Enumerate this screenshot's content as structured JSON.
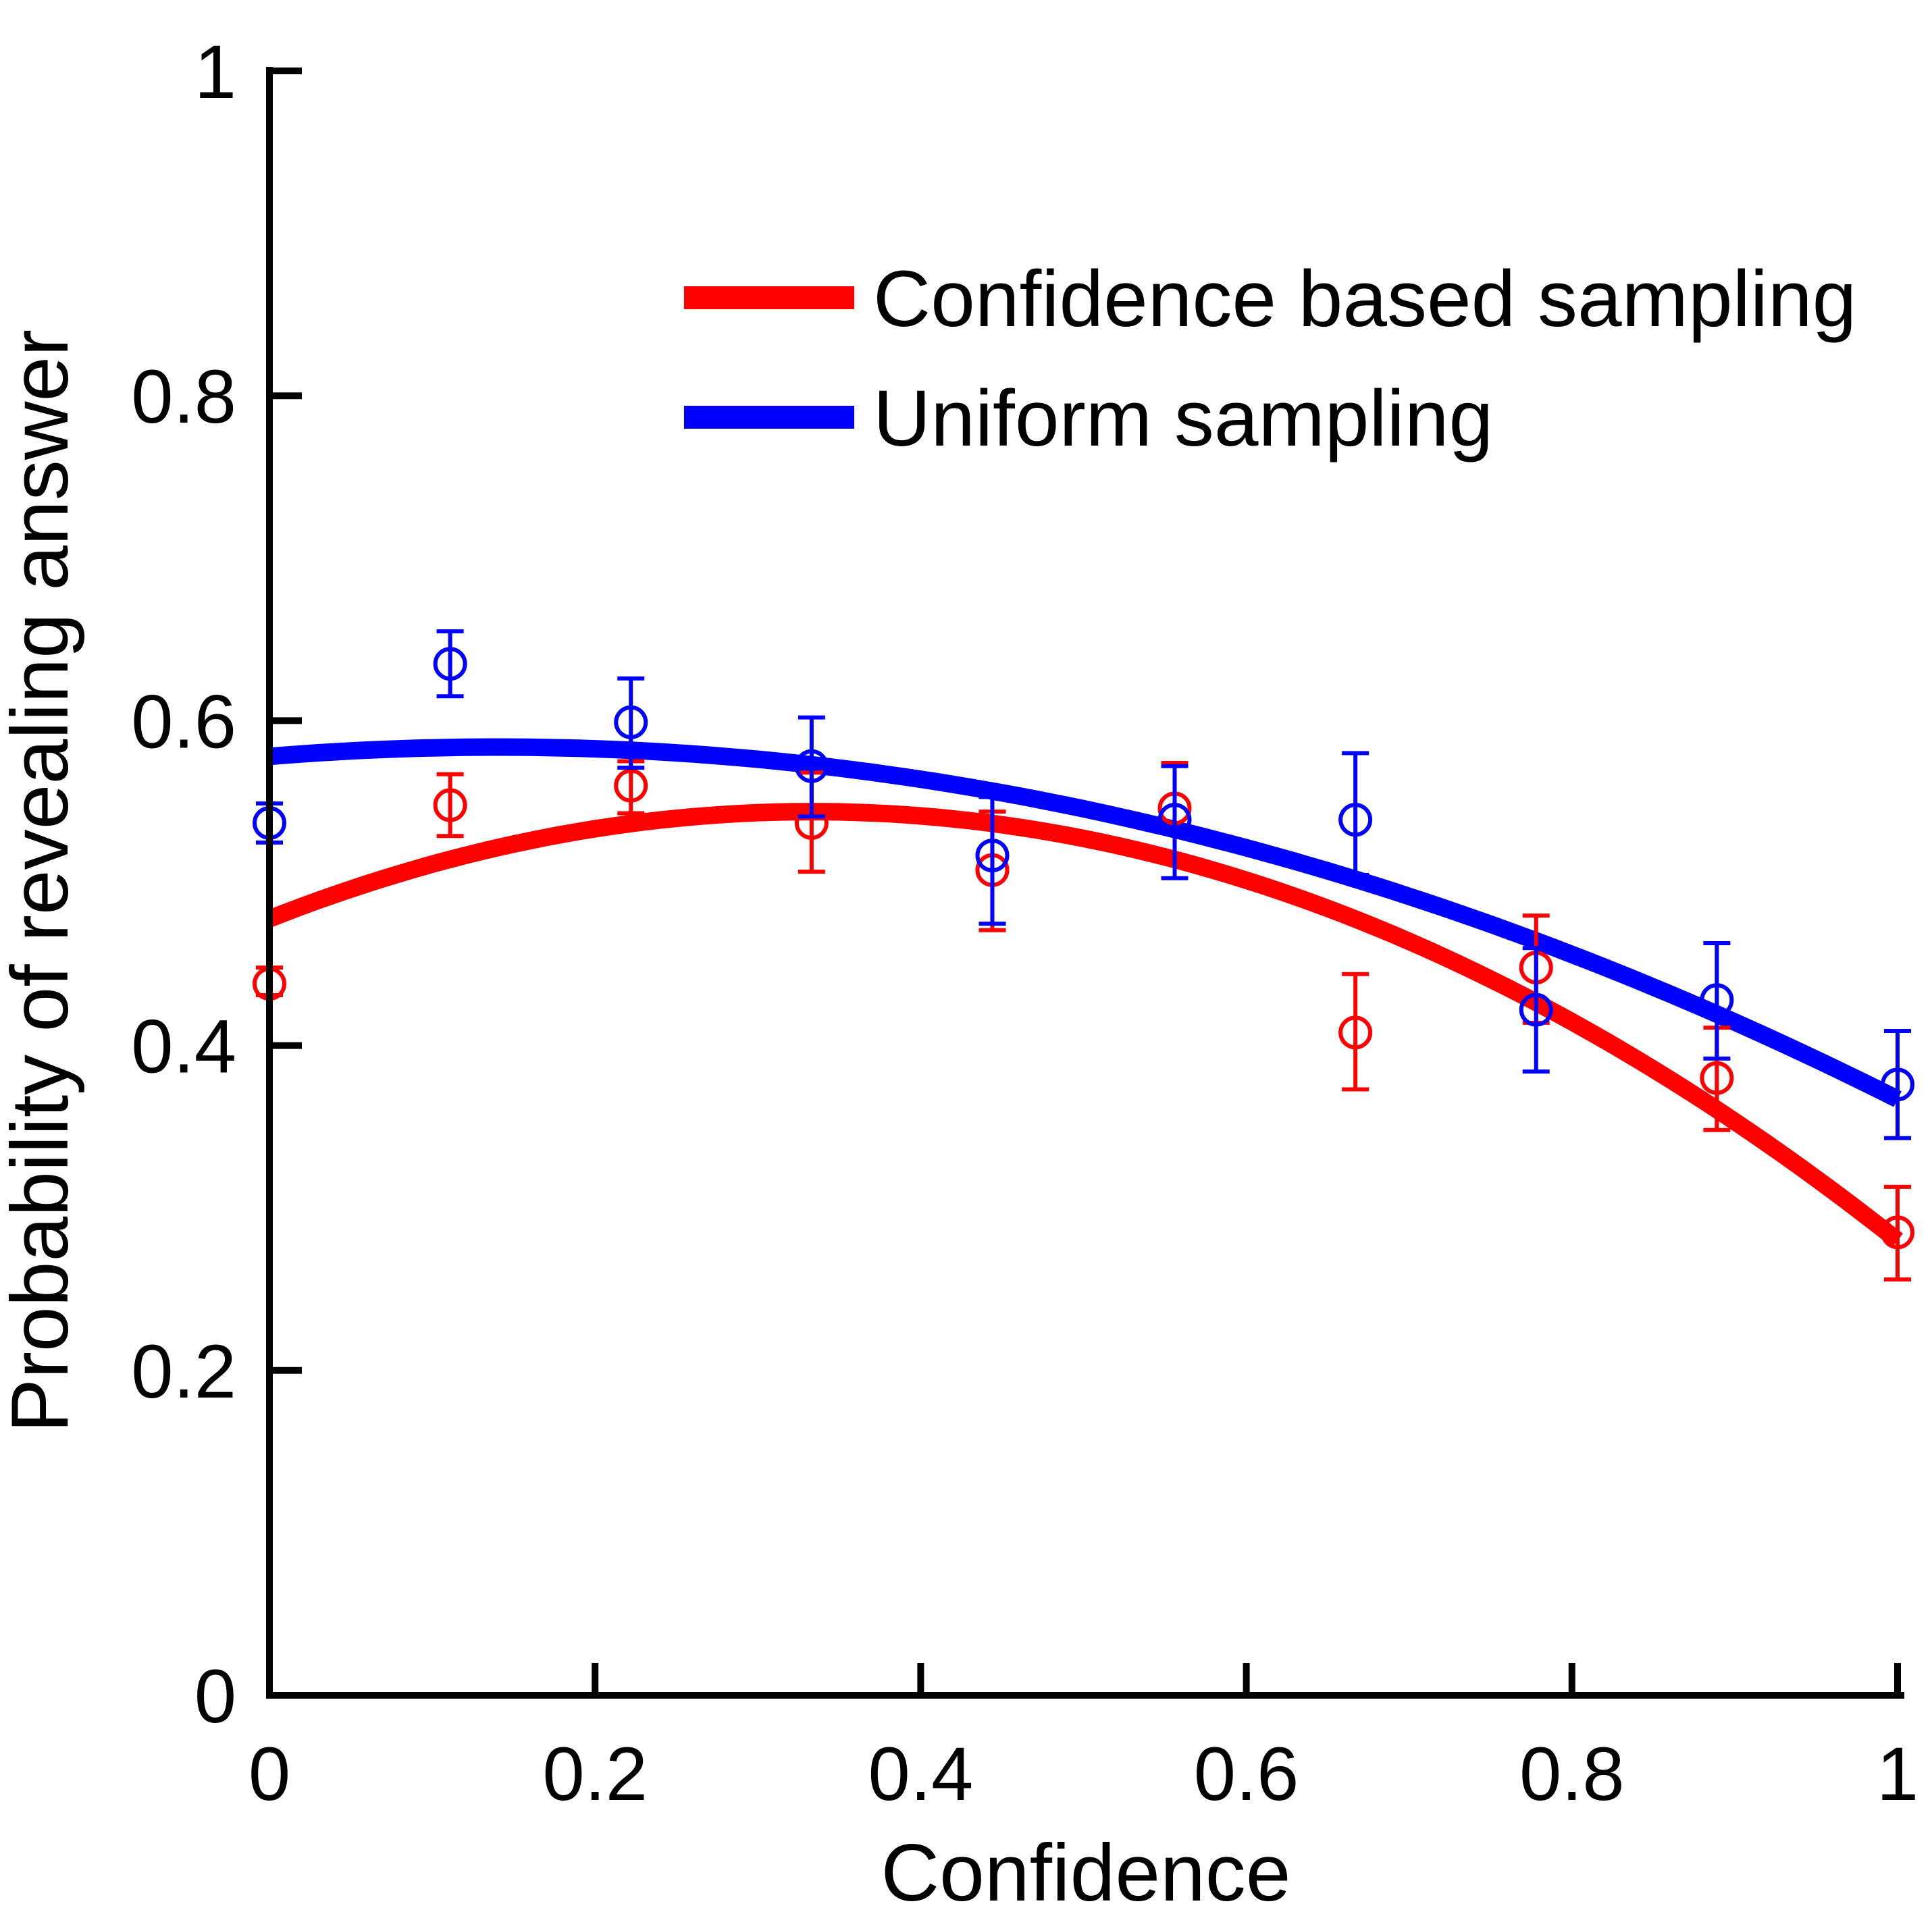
{
  "chart_data": {
    "type": "line",
    "xlabel": "Confidence",
    "ylabel": "Probability of revealing answer",
    "xlim": [
      0,
      1
    ],
    "ylim": [
      0,
      1
    ],
    "xticks": [
      0,
      0.2,
      0.4,
      0.6,
      0.8,
      1
    ],
    "yticks": [
      0,
      0.2,
      0.4,
      0.6,
      0.8,
      1
    ],
    "xtick_labels": [
      "0",
      "0.2",
      "0.4",
      "0.6",
      "0.8",
      "1"
    ],
    "ytick_labels": [
      "0",
      "0.2",
      "0.4",
      "0.6",
      "0.8",
      "1"
    ],
    "grid": false,
    "legend_position": "top-right",
    "series": [
      {
        "name": "Confidence based sampling",
        "color": "#ff0000",
        "fit": [
          0.478,
          0.396,
          -0.594
        ],
        "points": [
          {
            "x": 0.0,
            "y": 0.438,
            "lo": 0.431,
            "hi": 0.448
          },
          {
            "x": 0.111,
            "y": 0.548,
            "lo": 0.529,
            "hi": 0.567
          },
          {
            "x": 0.222,
            "y": 0.56,
            "lo": 0.543,
            "hi": 0.575
          },
          {
            "x": 0.333,
            "y": 0.537,
            "lo": 0.507,
            "hi": 0.568
          },
          {
            "x": 0.444,
            "y": 0.508,
            "lo": 0.471,
            "hi": 0.544
          },
          {
            "x": 0.556,
            "y": 0.546,
            "lo": 0.514,
            "hi": 0.574
          },
          {
            "x": 0.667,
            "y": 0.408,
            "lo": 0.373,
            "hi": 0.444
          },
          {
            "x": 0.778,
            "y": 0.448,
            "lo": 0.414,
            "hi": 0.48
          },
          {
            "x": 0.889,
            "y": 0.38,
            "lo": 0.348,
            "hi": 0.411
          },
          {
            "x": 1.0,
            "y": 0.285,
            "lo": 0.256,
            "hi": 0.313
          }
        ]
      },
      {
        "name": "Uniform sampling",
        "color": "#0000ff",
        "fit": [
          0.578,
          0.082,
          -0.293
        ],
        "points": [
          {
            "x": 0.0,
            "y": 0.537,
            "lo": 0.525,
            "hi": 0.549
          },
          {
            "x": 0.111,
            "y": 0.635,
            "lo": 0.615,
            "hi": 0.655
          },
          {
            "x": 0.222,
            "y": 0.599,
            "lo": 0.571,
            "hi": 0.626
          },
          {
            "x": 0.333,
            "y": 0.572,
            "lo": 0.541,
            "hi": 0.602
          },
          {
            "x": 0.444,
            "y": 0.517,
            "lo": 0.475,
            "hi": 0.553
          },
          {
            "x": 0.556,
            "y": 0.539,
            "lo": 0.503,
            "hi": 0.572
          },
          {
            "x": 0.667,
            "y": 0.539,
            "lo": 0.505,
            "hi": 0.58
          },
          {
            "x": 0.778,
            "y": 0.422,
            "lo": 0.384,
            "hi": 0.46
          },
          {
            "x": 0.889,
            "y": 0.428,
            "lo": 0.392,
            "hi": 0.463
          },
          {
            "x": 1.0,
            "y": 0.376,
            "lo": 0.343,
            "hi": 0.409
          }
        ]
      }
    ]
  }
}
